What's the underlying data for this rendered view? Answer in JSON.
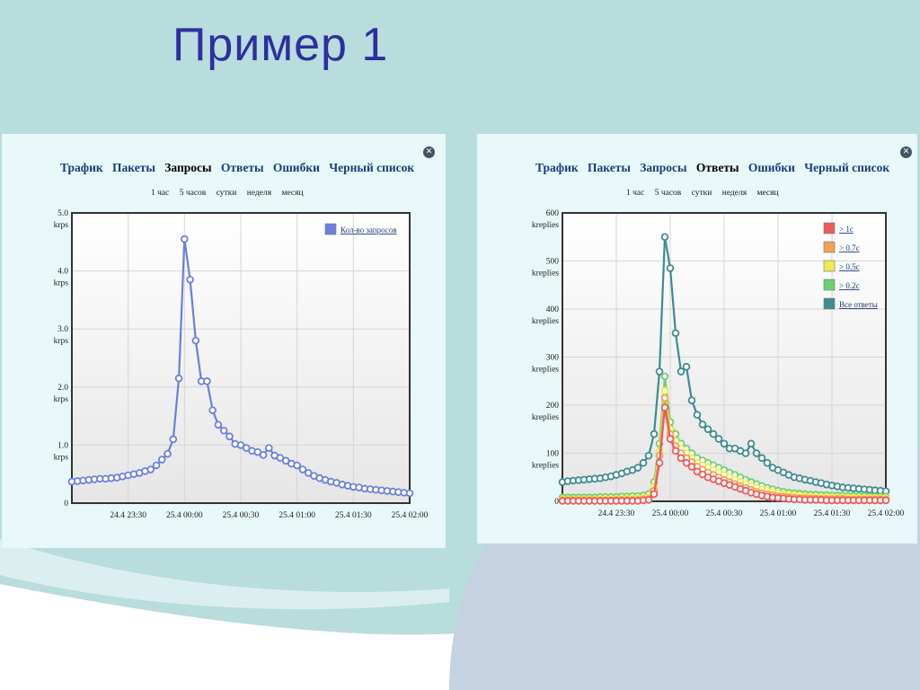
{
  "slide": {
    "title": "Пример 1"
  },
  "colors": {
    "title": "#2d2f9e",
    "background_teal": "#b9dcdd",
    "panel_bg": "#e8f7f8",
    "tab_link": "#1a3f7a"
  },
  "panels": [
    {
      "tabs": [
        "Трафик",
        "Пакеты",
        "Запросы",
        "Ответы",
        "Ошибки",
        "Черный список"
      ],
      "active_tab": "Запросы",
      "ranges": [
        "1 час",
        "5 часов",
        "сутки",
        "неделя",
        "месяц"
      ],
      "close_icon": "close-circle-icon"
    },
    {
      "tabs": [
        "Трафик",
        "Пакеты",
        "Запросы",
        "Ответы",
        "Ошибки",
        "Черный список"
      ],
      "active_tab": "Ответы",
      "ranges": [
        "1 час",
        "5 часов",
        "сутки",
        "неделя",
        "месяц"
      ],
      "close_icon": "close-circle-icon"
    }
  ],
  "chart_data": [
    {
      "type": "line",
      "title": "",
      "xlabel": "",
      "ylabel": "",
      "ylim": [
        0,
        5
      ],
      "yticks": [
        {
          "value": 0,
          "label": "0",
          "unit": ""
        },
        {
          "value": 1,
          "label": "1.0",
          "unit": "krps"
        },
        {
          "value": 2,
          "label": "2.0",
          "unit": "krps"
        },
        {
          "value": 3,
          "label": "3.0",
          "unit": "krps"
        },
        {
          "value": 4,
          "label": "4.0",
          "unit": "krps"
        },
        {
          "value": 5,
          "label": "5.0",
          "unit": "krps"
        }
      ],
      "xticks": [
        {
          "label": "24.4 23:30",
          "x": "23:30"
        },
        {
          "label": "25.4 00:00",
          "x": "00:00"
        },
        {
          "label": "25.4 00:30",
          "x": "00:30"
        },
        {
          "label": "25.4 01:00",
          "x": "01:00"
        },
        {
          "label": "25.4 01:30",
          "x": "01:30"
        },
        {
          "label": "25.4 02:00",
          "x": "02:00"
        }
      ],
      "x_range": [
        "23:00",
        "02:00"
      ],
      "grid": true,
      "legend_position": "top-right",
      "series": [
        {
          "name": "Кол-во запросов",
          "color": "#6b7fe0",
          "x": [
            "23:00",
            "23:03",
            "23:06",
            "23:09",
            "23:12",
            "23:15",
            "23:18",
            "23:21",
            "23:24",
            "23:27",
            "23:30",
            "23:33",
            "23:36",
            "23:39",
            "23:42",
            "23:45",
            "23:48",
            "23:51",
            "23:54",
            "23:57",
            "00:00",
            "00:03",
            "00:06",
            "00:09",
            "00:12",
            "00:15",
            "00:18",
            "00:21",
            "00:24",
            "00:27",
            "00:30",
            "00:33",
            "00:36",
            "00:39",
            "00:42",
            "00:45",
            "00:48",
            "00:51",
            "00:54",
            "00:57",
            "01:00",
            "01:03",
            "01:06",
            "01:09",
            "01:12",
            "01:15",
            "01:18",
            "01:21",
            "01:24",
            "01:27",
            "01:30",
            "01:33",
            "01:36",
            "01:39",
            "01:42",
            "01:45",
            "01:48",
            "01:51",
            "01:54",
            "01:57",
            "02:00"
          ],
          "values": [
            0.37,
            0.38,
            0.39,
            0.4,
            0.41,
            0.42,
            0.42,
            0.43,
            0.44,
            0.46,
            0.48,
            0.5,
            0.52,
            0.55,
            0.58,
            0.65,
            0.75,
            0.85,
            1.1,
            2.15,
            4.55,
            3.85,
            2.8,
            2.1,
            2.1,
            1.6,
            1.35,
            1.25,
            1.15,
            1.02,
            1.0,
            0.95,
            0.9,
            0.88,
            0.83,
            0.95,
            0.82,
            0.78,
            0.73,
            0.68,
            0.65,
            0.58,
            0.52,
            0.47,
            0.43,
            0.4,
            0.37,
            0.35,
            0.32,
            0.3,
            0.28,
            0.27,
            0.25,
            0.24,
            0.23,
            0.22,
            0.21,
            0.2,
            0.19,
            0.18,
            0.17
          ]
        }
      ]
    },
    {
      "type": "line",
      "title": "",
      "xlabel": "",
      "ylabel": "",
      "ylim": [
        0,
        600
      ],
      "yticks": [
        {
          "value": 0,
          "label": "0",
          "unit": ""
        },
        {
          "value": 100,
          "label": "100",
          "unit": "kreplies"
        },
        {
          "value": 200,
          "label": "200",
          "unit": "kreplies"
        },
        {
          "value": 300,
          "label": "300",
          "unit": "kreplies"
        },
        {
          "value": 400,
          "label": "400",
          "unit": "kreplies"
        },
        {
          "value": 500,
          "label": "500",
          "unit": "kreplies"
        },
        {
          "value": 600,
          "label": "600",
          "unit": "kreplies"
        }
      ],
      "xticks": [
        {
          "label": "24.4 23:30",
          "x": "23:30"
        },
        {
          "label": "25.4 00:00",
          "x": "00:00"
        },
        {
          "label": "25.4 00:30",
          "x": "00:30"
        },
        {
          "label": "25.4 01:00",
          "x": "01:00"
        },
        {
          "label": "25.4 01:30",
          "x": "01:30"
        },
        {
          "label": "25.4 02:00",
          "x": "02:00"
        }
      ],
      "x_range": [
        "23:00",
        "02:00"
      ],
      "grid": true,
      "legend_position": "top-right",
      "series": [
        {
          "name": "Все ответы",
          "color": "#3d8c90",
          "x": [
            "23:00",
            "23:03",
            "23:06",
            "23:09",
            "23:12",
            "23:15",
            "23:18",
            "23:21",
            "23:24",
            "23:27",
            "23:30",
            "23:33",
            "23:36",
            "23:39",
            "23:42",
            "23:45",
            "23:48",
            "23:51",
            "23:54",
            "23:57",
            "00:00",
            "00:03",
            "00:06",
            "00:09",
            "00:12",
            "00:15",
            "00:18",
            "00:21",
            "00:24",
            "00:27",
            "00:30",
            "00:33",
            "00:36",
            "00:39",
            "00:42",
            "00:45",
            "00:48",
            "00:51",
            "00:54",
            "00:57",
            "01:00",
            "01:03",
            "01:06",
            "01:09",
            "01:12",
            "01:15",
            "01:18",
            "01:21",
            "01:24",
            "01:27",
            "01:30",
            "01:33",
            "01:36",
            "01:39",
            "01:42",
            "01:45",
            "01:48",
            "01:51",
            "01:54",
            "01:57",
            "02:00"
          ],
          "values": [
            40,
            42,
            43,
            44,
            45,
            46,
            47,
            48,
            50,
            52,
            55,
            58,
            62,
            65,
            70,
            80,
            95,
            140,
            270,
            550,
            485,
            350,
            270,
            280,
            210,
            180,
            160,
            150,
            140,
            130,
            120,
            110,
            110,
            105,
            100,
            120,
            100,
            90,
            80,
            70,
            65,
            60,
            55,
            50,
            48,
            45,
            43,
            40,
            38,
            35,
            33,
            31,
            29,
            28,
            27,
            26,
            25,
            24,
            23,
            22,
            21
          ]
        },
        {
          "name": "> 0.2с",
          "color": "#6ed06e",
          "x": [
            "23:00",
            "23:03",
            "23:06",
            "23:09",
            "23:12",
            "23:15",
            "23:18",
            "23:21",
            "23:24",
            "23:27",
            "23:30",
            "23:33",
            "23:36",
            "23:39",
            "23:42",
            "23:45",
            "23:48",
            "23:51",
            "23:54",
            "23:57",
            "00:00",
            "00:03",
            "00:06",
            "00:09",
            "00:12",
            "00:15",
            "00:18",
            "00:21",
            "00:24",
            "00:27",
            "00:30",
            "00:33",
            "00:36",
            "00:39",
            "00:42",
            "00:45",
            "00:48",
            "00:51",
            "00:54",
            "00:57",
            "01:00",
            "01:03",
            "01:06",
            "01:09",
            "01:12",
            "01:15",
            "01:18",
            "01:21",
            "01:24",
            "01:27",
            "01:30",
            "01:33",
            "01:36",
            "01:39",
            "01:42",
            "01:45",
            "01:48",
            "01:51",
            "01:54",
            "01:57",
            "02:00"
          ],
          "values": [
            8,
            8,
            8,
            8,
            8,
            8,
            8,
            9,
            9,
            9,
            9,
            10,
            10,
            11,
            11,
            12,
            15,
            40,
            120,
            260,
            165,
            140,
            120,
            110,
            100,
            90,
            85,
            80,
            75,
            70,
            65,
            60,
            55,
            50,
            45,
            40,
            36,
            32,
            28,
            25,
            22,
            20,
            18,
            17,
            16,
            15,
            14,
            14,
            13,
            13,
            12,
            12,
            12,
            11,
            11,
            11,
            11,
            10,
            10,
            10,
            10
          ]
        },
        {
          "name": "> 0.5с",
          "color": "#ecec4e",
          "x": [
            "23:00",
            "23:03",
            "23:06",
            "23:09",
            "23:12",
            "23:15",
            "23:18",
            "23:21",
            "23:24",
            "23:27",
            "23:30",
            "23:33",
            "23:36",
            "23:39",
            "23:42",
            "23:45",
            "23:48",
            "23:51",
            "23:54",
            "23:57",
            "00:00",
            "00:03",
            "00:06",
            "00:09",
            "00:12",
            "00:15",
            "00:18",
            "00:21",
            "00:24",
            "00:27",
            "00:30",
            "00:33",
            "00:36",
            "00:39",
            "00:42",
            "00:45",
            "00:48",
            "00:51",
            "00:54",
            "00:57",
            "01:00",
            "01:03",
            "01:06",
            "01:09",
            "01:12",
            "01:15",
            "01:18",
            "01:21",
            "01:24",
            "01:27",
            "01:30",
            "01:33",
            "01:36",
            "01:39",
            "01:42",
            "01:45",
            "01:48",
            "01:51",
            "01:54",
            "01:57",
            "02:00"
          ],
          "values": [
            4,
            4,
            4,
            4,
            4,
            4,
            4,
            5,
            5,
            5,
            5,
            5,
            6,
            6,
            6,
            7,
            9,
            30,
            105,
            230,
            150,
            125,
            110,
            100,
            90,
            80,
            75,
            70,
            65,
            60,
            55,
            50,
            45,
            40,
            36,
            32,
            28,
            25,
            22,
            19,
            17,
            15,
            14,
            13,
            12,
            11,
            10,
            10,
            9,
            9,
            9,
            8,
            8,
            8,
            8,
            7,
            7,
            7,
            7,
            7,
            7
          ]
        },
        {
          "name": "> 0.7с",
          "color": "#f0a050",
          "x": [
            "23:00",
            "23:03",
            "23:06",
            "23:09",
            "23:12",
            "23:15",
            "23:18",
            "23:21",
            "23:24",
            "23:27",
            "23:30",
            "23:33",
            "23:36",
            "23:39",
            "23:42",
            "23:45",
            "23:48",
            "23:51",
            "23:54",
            "23:57",
            "00:00",
            "00:03",
            "00:06",
            "00:09",
            "00:12",
            "00:15",
            "00:18",
            "00:21",
            "00:24",
            "00:27",
            "00:30",
            "00:33",
            "00:36",
            "00:39",
            "00:42",
            "00:45",
            "00:48",
            "00:51",
            "00:54",
            "00:57",
            "01:00",
            "01:03",
            "01:06",
            "01:09",
            "01:12",
            "01:15",
            "01:18",
            "01:21",
            "01:24",
            "01:27",
            "01:30",
            "01:33",
            "01:36",
            "01:39",
            "01:42",
            "01:45",
            "01:48",
            "01:51",
            "01:54",
            "01:57",
            "02:00"
          ],
          "values": [
            2,
            2,
            2,
            2,
            2,
            2,
            2,
            2,
            2,
            2,
            3,
            3,
            3,
            3,
            3,
            4,
            5,
            22,
            95,
            215,
            140,
            115,
            100,
            90,
            82,
            72,
            66,
            60,
            55,
            50,
            45,
            40,
            36,
            32,
            28,
            24,
            20,
            17,
            15,
            13,
            11,
            10,
            9,
            8,
            7,
            7,
            6,
            6,
            5,
            5,
            5,
            5,
            5,
            4,
            4,
            4,
            4,
            4,
            4,
            4,
            4
          ]
        },
        {
          "name": "> 1с",
          "color": "#ee5a5a",
          "x": [
            "23:00",
            "23:03",
            "23:06",
            "23:09",
            "23:12",
            "23:15",
            "23:18",
            "23:21",
            "23:24",
            "23:27",
            "23:30",
            "23:33",
            "23:36",
            "23:39",
            "23:42",
            "23:45",
            "23:48",
            "23:51",
            "23:54",
            "23:57",
            "00:00",
            "00:03",
            "00:06",
            "00:09",
            "00:12",
            "00:15",
            "00:18",
            "00:21",
            "00:24",
            "00:27",
            "00:30",
            "00:33",
            "00:36",
            "00:39",
            "00:42",
            "00:45",
            "00:48",
            "00:51",
            "00:54",
            "00:57",
            "01:00",
            "01:03",
            "01:06",
            "01:09",
            "01:12",
            "01:15",
            "01:18",
            "01:21",
            "01:24",
            "01:27",
            "01:30",
            "01:33",
            "01:36",
            "01:39",
            "01:42",
            "01:45",
            "01:48",
            "01:51",
            "01:54",
            "01:57",
            "02:00"
          ],
          "values": [
            1,
            1,
            1,
            1,
            1,
            1,
            1,
            1,
            1,
            1,
            1,
            1,
            1,
            1,
            1,
            2,
            3,
            15,
            80,
            195,
            130,
            105,
            90,
            80,
            72,
            62,
            56,
            50,
            46,
            42,
            38,
            34,
            30,
            26,
            22,
            18,
            15,
            12,
            10,
            8,
            7,
            6,
            5,
            4,
            4,
            3,
            3,
            3,
            3,
            2,
            2,
            2,
            2,
            2,
            2,
            2,
            2,
            2,
            2,
            2,
            2
          ]
        }
      ],
      "legend_order": [
        "> 1с",
        "> 0.7с",
        "> 0.5с",
        "> 0.2с",
        "Все ответы"
      ]
    }
  ]
}
